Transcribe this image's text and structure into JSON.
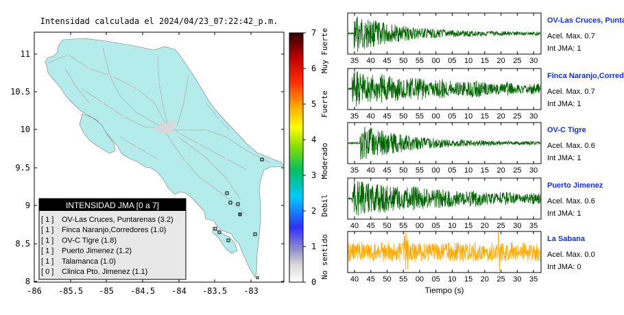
{
  "map": {
    "title": "Intensidad calculada el 2024/04/23_07:22:42_p.m.",
    "x_ticks": [
      "-86",
      "-85.5",
      "-85",
      "-84.5",
      "-84",
      "-83.5",
      "-83"
    ],
    "y_ticks": [
      "11",
      "10.5",
      "10",
      "9.5",
      "9",
      "8.5",
      "8"
    ],
    "land_color": "#b4ecec",
    "station_color": "#000000"
  },
  "legend": {
    "title": "INTENSIDAD JMA [0 a 7]",
    "items": [
      {
        "level": "[ 1 ]",
        "station": "OV-Las Cruces, Puntarenas (3.2)"
      },
      {
        "level": "[ 1 ]",
        "station": "Finca Naranjo,Corredores (1.0)"
      },
      {
        "level": "[ 1 ]",
        "station": "OV-C Tigre (1.8)"
      },
      {
        "level": "[ 1 ]",
        "station": "Puerto Jimenez (1.2)"
      },
      {
        "level": "[ 1 ]",
        "station": "Talamanca (1.0)"
      },
      {
        "level": "[ 0 ]",
        "station": "Clinica Pto. Jimenez (1.1)"
      }
    ]
  },
  "colorbar": {
    "ticks": [
      "7",
      "6",
      "5",
      "4",
      "3",
      "2",
      "1",
      "0"
    ],
    "labels": [
      "Muy Fuerte",
      "Fuerte",
      "Moderado",
      "Debil",
      "No sentido"
    ]
  },
  "seismograms": {
    "xlabel": "Tiempo (s)",
    "panels": [
      {
        "name": "OV-Las Cruces, Puntarenas",
        "accel_label": "Acel. Max. 0.7",
        "int_label": "Int JMA: 1",
        "color": "#006400",
        "ticks": [
          "35",
          "40",
          "45",
          "50",
          "55",
          "00",
          "05",
          "10",
          "15",
          "20",
          "25",
          "30"
        ]
      },
      {
        "name": "Finca Naranjo,Corredores",
        "accel_label": "Acel. Max. 0.7",
        "int_label": "Int JMA: 1",
        "color": "#006400",
        "ticks": [
          "35",
          "40",
          "45",
          "50",
          "55",
          "00",
          "05",
          "10",
          "15",
          "20",
          "25",
          "30"
        ]
      },
      {
        "name": "OV-C Tigre",
        "accel_label": "Acel. Max. 0.6",
        "int_label": "Int JMA: 1",
        "color": "#006400",
        "ticks": [
          "35",
          "40",
          "45",
          "50",
          "55",
          "00",
          "05",
          "10",
          "15",
          "20",
          "25",
          "30"
        ]
      },
      {
        "name": "Puerto Jimenez",
        "accel_label": "Acel. Max. 0.6",
        "int_label": "Int JMA: 1",
        "color": "#006400",
        "ticks": [
          "40",
          "45",
          "50",
          "55",
          "00",
          "05",
          "10",
          "15",
          "20",
          "25",
          "30",
          "35"
        ]
      },
      {
        "name": "La Sabana",
        "accel_label": "Acel. Max. 0.0",
        "int_label": "Int JMA: 0",
        "color": "#ffaa00",
        "ticks": [
          "40",
          "45",
          "50",
          "55",
          "00",
          "05",
          "10",
          "15",
          "20",
          "25",
          "30",
          "35"
        ]
      }
    ]
  }
}
